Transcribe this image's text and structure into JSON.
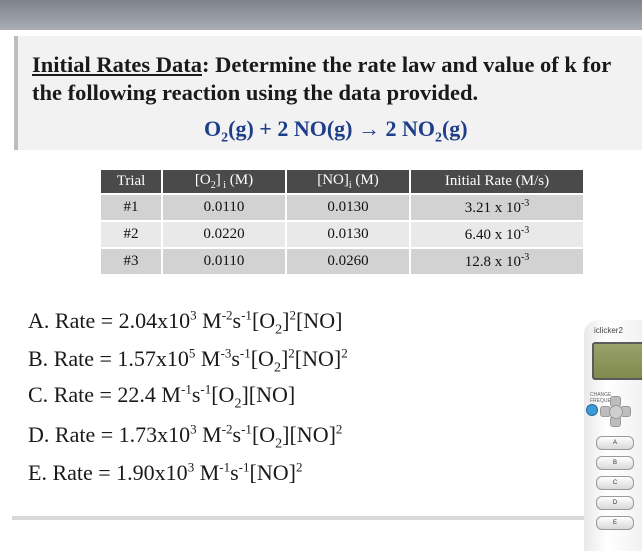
{
  "title": {
    "line1_prefix": "Initial Rates Data",
    "line1_suffix": ": Determine the rate law and value of k for",
    "line2": "the following reaction using the data provided."
  },
  "equation": {
    "o2": "O",
    "o2_sub": "2",
    "o2_state": "(g) + 2 NO(g) → 2 NO",
    "no2_sub": "2",
    "no2_state": "(g)"
  },
  "table": {
    "headers": [
      "Trial",
      "[O2]i (M)",
      "[NO]i (M)",
      "Initial Rate (M/s)"
    ],
    "rows": [
      {
        "trial": "#1",
        "o2": "0.0110",
        "no": "0.0130",
        "rate": "3.21 x 10",
        "exp": "-3"
      },
      {
        "trial": "#2",
        "o2": "0.0220",
        "no": "0.0130",
        "rate": "6.40 x 10",
        "exp": "-3"
      },
      {
        "trial": "#3",
        "o2": "0.0110",
        "no": "0.0260",
        "rate": "12.8 x 10",
        "exp": "-3"
      }
    ]
  },
  "answers": {
    "a": {
      "label": "A.",
      "text": "Rate  = 2.04x10",
      "exp": "3",
      "units": " M",
      "u1": "-2",
      "s": "s",
      "u2": "-1",
      "law": "[O",
      "law_sub": "2",
      "law_end": "]",
      "law_exp": "2",
      "rest": "[NO]",
      "rest_exp": ""
    },
    "b": {
      "label": "B.",
      "text": "Rate = 1.57x10",
      "exp": "5",
      "units": " M",
      "u1": "-3",
      "s": "s",
      "u2": "-1",
      "law": "[O",
      "law_sub": "2",
      "law_end": "]",
      "law_exp": "2",
      "rest": "[NO]",
      "rest_exp": "2"
    },
    "c": {
      "label": "C.",
      "text": "Rate = 22.4 M",
      "u1": "-1",
      "s": "s",
      "u2": "-1",
      "law": "[O",
      "law_sub": "2",
      "law_end": "][NO]"
    },
    "d": {
      "label": "D.",
      "text": "Rate  =  1.73x10",
      "exp": "3",
      "units": " M",
      "u1": "-2",
      "s": "s",
      "u2": "-1",
      "law": "[O",
      "law_sub": "2",
      "law_end": "][NO]",
      "law_exp": "2"
    },
    "e": {
      "label": "E.",
      "text": "Rate = 1.90x10",
      "exp": "3",
      "units": " M",
      "u1": "-1",
      "s": "s",
      "u2": "-1",
      "rest": "[NO]",
      "rest_exp": "2"
    }
  },
  "clicker": {
    "brand": "iclicker2",
    "mode_label": "CHANGE FREQUENCY",
    "keys": [
      "A",
      "B",
      "C",
      "D",
      "E"
    ]
  }
}
